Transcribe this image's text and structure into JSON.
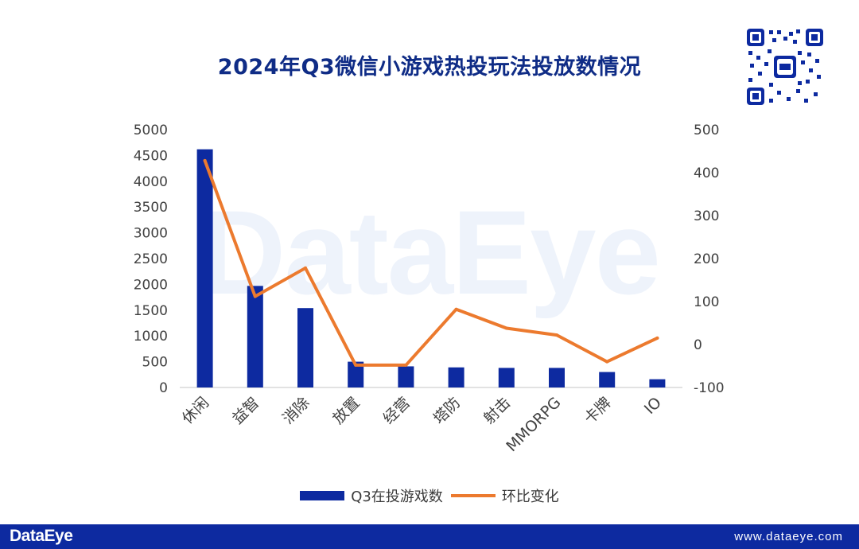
{
  "title": "2024年Q3微信小游戏热投玩法投放数情况",
  "watermark": "DataEye",
  "footer": {
    "brand": "DataEye",
    "url": "www.dataeye.com"
  },
  "colors": {
    "title": "#0f2c86",
    "bar": "#0d2aa0",
    "line": "#ec7a2e",
    "footer_bg": "#0d2aa0"
  },
  "chart_data": {
    "type": "bar",
    "title": "2024年Q3微信小游戏热投玩法投放数情况",
    "categories": [
      "休闲",
      "益智",
      "消除",
      "放置",
      "经营",
      "塔防",
      "射击",
      "MMORPG",
      "卡牌",
      "IO"
    ],
    "series": [
      {
        "name": "Q3在投游戏数",
        "type": "bar",
        "axis": "left",
        "values": [
          4620,
          1970,
          1540,
          500,
          410,
          390,
          380,
          380,
          300,
          160
        ]
      },
      {
        "name": "环比变化",
        "type": "line",
        "axis": "right",
        "values": [
          428,
          112,
          178,
          -48,
          -48,
          82,
          38,
          22,
          -40,
          15
        ]
      }
    ],
    "y_left": {
      "min": 0,
      "max": 5000,
      "ticks": [
        0,
        500,
        1000,
        1500,
        2000,
        2500,
        3000,
        3500,
        4000,
        4500,
        5000
      ]
    },
    "y_right": {
      "min": -100,
      "max": 500,
      "ticks": [
        -100,
        0,
        100,
        200,
        300,
        400,
        500
      ]
    },
    "grid": false,
    "legend_position": "bottom"
  }
}
